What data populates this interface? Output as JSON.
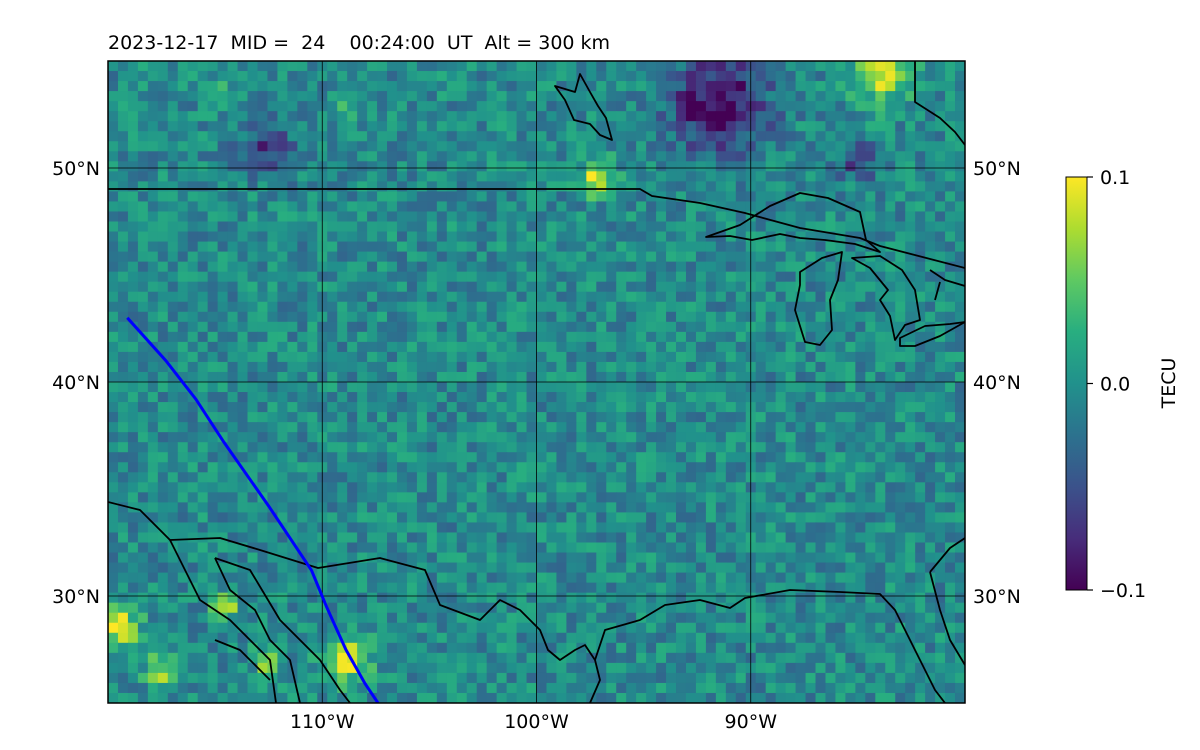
{
  "chart_data": {
    "type": "heatmap",
    "title": "2023-12-17  MID =  24    00:24:00  UT  Alt = 300 km",
    "x_ticks": [
      {
        "lon": -110,
        "label": "110°W"
      },
      {
        "lon": -100,
        "label": "100°W"
      },
      {
        "lon": -90,
        "label": "90°W"
      }
    ],
    "y_ticks": [
      {
        "lat": 50,
        "label": "50°N"
      },
      {
        "lat": 40,
        "label": "40°N"
      },
      {
        "lat": 30,
        "label": "30°N"
      }
    ],
    "lon_range": [
      -120,
      -80
    ],
    "lat_range": [
      25,
      55
    ],
    "grid": true,
    "colormap": "viridis",
    "colorbar": {
      "label": "TECU",
      "range": [
        -0.1,
        0.1
      ],
      "tick_values": [
        0.1,
        0.0,
        -0.1
      ],
      "tick_labels": [
        "0.1",
        "0.0",
        "−0.1"
      ]
    },
    "features": {
      "negative_patches": [
        {
          "lon": -91.5,
          "lat": 53.0,
          "radius": 2.2,
          "value": -0.1
        },
        {
          "lon": -112.5,
          "lat": 51.0,
          "radius": 1.2,
          "value": -0.06
        },
        {
          "lon": -85.0,
          "lat": 50.3,
          "radius": 0.8,
          "value": -0.07
        }
      ],
      "positive_patches": [
        {
          "lon": -84.0,
          "lat": 54.5,
          "radius": 1.3,
          "value": 0.1
        },
        {
          "lon": -97.2,
          "lat": 49.5,
          "radius": 0.8,
          "value": 0.09
        },
        {
          "lon": -119.5,
          "lat": 28.5,
          "radius": 0.9,
          "value": 0.1
        },
        {
          "lon": -108.8,
          "lat": 27.0,
          "radius": 1.0,
          "value": 0.1
        },
        {
          "lon": -112.5,
          "lat": 27.0,
          "radius": 0.6,
          "value": 0.09
        },
        {
          "lon": -114.5,
          "lat": 29.5,
          "radius": 0.6,
          "value": 0.08
        },
        {
          "lon": -117.5,
          "lat": 26.5,
          "radius": 0.8,
          "value": 0.07
        },
        {
          "lon": -109.0,
          "lat": 52.8,
          "radius": 0.5,
          "value": 0.07
        },
        {
          "lon": -115.0,
          "lat": 53.5,
          "radius": 0.5,
          "value": 0.06
        }
      ]
    },
    "track": {
      "color": "#0000ff",
      "lonlat": [
        [
          -119.1,
          43.0
        ],
        [
          -117.3,
          41.0
        ],
        [
          -115.9,
          39.2
        ],
        [
          -114.6,
          37.2
        ],
        [
          -112.5,
          34.2
        ],
        [
          -110.5,
          31.2
        ],
        [
          -109.8,
          29.5
        ],
        [
          -108.9,
          27.5
        ],
        [
          -108.0,
          25.9
        ],
        [
          -107.4,
          25.0
        ]
      ]
    },
    "coastlines_color": "#000000"
  }
}
